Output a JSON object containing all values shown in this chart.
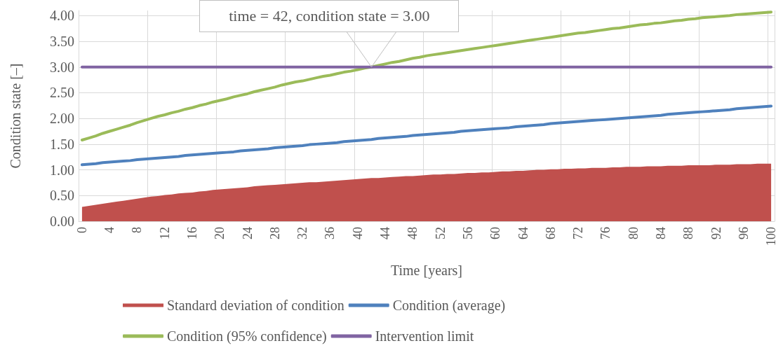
{
  "chart_data": {
    "type": "line",
    "xlabel": "Time [years]",
    "ylabel": "Condition state [–]",
    "categories": [
      "0",
      null,
      null,
      null,
      "4",
      null,
      null,
      null,
      "8",
      null,
      null,
      null,
      "12",
      null,
      null,
      null,
      "16",
      null,
      null,
      null,
      "20",
      null,
      null,
      null,
      "24",
      null,
      null,
      null,
      "28",
      null,
      null,
      null,
      "32",
      null,
      null,
      null,
      "36",
      null,
      null,
      null,
      "40",
      null,
      null,
      null,
      "44",
      null,
      null,
      null,
      "48",
      null,
      null,
      null,
      "52",
      null,
      null,
      null,
      "56",
      null,
      null,
      null,
      "60",
      null,
      null,
      null,
      "64",
      null,
      null,
      null,
      "68",
      null,
      null,
      null,
      "72",
      null,
      null,
      null,
      "76",
      null,
      null,
      null,
      "80",
      null,
      null,
      null,
      "84",
      null,
      null,
      null,
      "88",
      null,
      null,
      null,
      "92",
      null,
      null,
      null,
      "96",
      null,
      null,
      null,
      "100"
    ],
    "series": [
      {
        "name": "Standard deviation of condition",
        "type": "area",
        "color": "#c0504d",
        "values": [
          0.28,
          0.3,
          0.32,
          0.34,
          0.36,
          0.38,
          0.4,
          0.42,
          0.44,
          0.46,
          0.48,
          0.49,
          0.51,
          0.52,
          0.54,
          0.55,
          0.56,
          0.58,
          0.59,
          0.61,
          0.62,
          0.63,
          0.64,
          0.65,
          0.66,
          0.68,
          0.69,
          0.7,
          0.71,
          0.72,
          0.73,
          0.74,
          0.75,
          0.76,
          0.76,
          0.77,
          0.78,
          0.79,
          0.8,
          0.81,
          0.82,
          0.83,
          0.84,
          0.84,
          0.85,
          0.86,
          0.87,
          0.88,
          0.88,
          0.89,
          0.9,
          0.91,
          0.91,
          0.92,
          0.92,
          0.93,
          0.94,
          0.94,
          0.95,
          0.95,
          0.96,
          0.97,
          0.97,
          0.98,
          0.98,
          0.99,
          1.0,
          1.0,
          1.01,
          1.01,
          1.02,
          1.02,
          1.03,
          1.03,
          1.04,
          1.04,
          1.04,
          1.05,
          1.05,
          1.06,
          1.06,
          1.06,
          1.07,
          1.07,
          1.07,
          1.08,
          1.08,
          1.08,
          1.09,
          1.09,
          1.09,
          1.09,
          1.1,
          1.1,
          1.1,
          1.11,
          1.11,
          1.11,
          1.12,
          1.12,
          1.12
        ]
      },
      {
        "name": "Condition (average)",
        "color": "#4f81bd",
        "values": [
          1.1,
          1.11,
          1.12,
          1.14,
          1.15,
          1.16,
          1.17,
          1.18,
          1.2,
          1.21,
          1.22,
          1.23,
          1.24,
          1.25,
          1.26,
          1.28,
          1.29,
          1.3,
          1.31,
          1.32,
          1.33,
          1.34,
          1.35,
          1.37,
          1.38,
          1.39,
          1.4,
          1.41,
          1.43,
          1.44,
          1.45,
          1.46,
          1.47,
          1.49,
          1.5,
          1.51,
          1.52,
          1.53,
          1.55,
          1.56,
          1.57,
          1.58,
          1.59,
          1.61,
          1.62,
          1.63,
          1.64,
          1.65,
          1.67,
          1.68,
          1.69,
          1.7,
          1.71,
          1.72,
          1.73,
          1.75,
          1.76,
          1.77,
          1.78,
          1.79,
          1.8,
          1.81,
          1.82,
          1.84,
          1.85,
          1.86,
          1.87,
          1.88,
          1.9,
          1.91,
          1.92,
          1.93,
          1.94,
          1.95,
          1.96,
          1.97,
          1.98,
          1.99,
          2.0,
          2.01,
          2.02,
          2.03,
          2.04,
          2.05,
          2.06,
          2.08,
          2.09,
          2.1,
          2.11,
          2.12,
          2.13,
          2.14,
          2.15,
          2.16,
          2.17,
          2.19,
          2.2,
          2.21,
          2.22,
          2.23,
          2.24
        ]
      },
      {
        "name": "Condition (95% confidence)",
        "color": "#9bbb59",
        "values": [
          1.58,
          1.62,
          1.66,
          1.71,
          1.75,
          1.79,
          1.83,
          1.87,
          1.92,
          1.96,
          2.0,
          2.04,
          2.07,
          2.11,
          2.14,
          2.18,
          2.21,
          2.25,
          2.28,
          2.32,
          2.35,
          2.38,
          2.42,
          2.45,
          2.48,
          2.52,
          2.55,
          2.58,
          2.61,
          2.65,
          2.68,
          2.71,
          2.73,
          2.76,
          2.79,
          2.82,
          2.84,
          2.87,
          2.9,
          2.92,
          2.95,
          2.98,
          3.0,
          3.03,
          3.06,
          3.09,
          3.11,
          3.14,
          3.17,
          3.19,
          3.22,
          3.24,
          3.26,
          3.28,
          3.3,
          3.32,
          3.34,
          3.36,
          3.38,
          3.4,
          3.42,
          3.44,
          3.46,
          3.48,
          3.5,
          3.52,
          3.54,
          3.56,
          3.58,
          3.6,
          3.62,
          3.64,
          3.66,
          3.67,
          3.69,
          3.71,
          3.73,
          3.75,
          3.76,
          3.78,
          3.8,
          3.82,
          3.83,
          3.85,
          3.86,
          3.88,
          3.9,
          3.91,
          3.93,
          3.94,
          3.96,
          3.97,
          3.98,
          3.99,
          4.0,
          4.02,
          4.03,
          4.04,
          4.05,
          4.06,
          4.07
        ]
      },
      {
        "name": "Intervention limit",
        "color": "#8064a2",
        "values": [
          3,
          3,
          3,
          3,
          3,
          3,
          3,
          3,
          3,
          3,
          3,
          3,
          3,
          3,
          3,
          3,
          3,
          3,
          3,
          3,
          3,
          3,
          3,
          3,
          3,
          3,
          3,
          3,
          3,
          3,
          3,
          3,
          3,
          3,
          3,
          3,
          3,
          3,
          3,
          3,
          3,
          3,
          3,
          3,
          3,
          3,
          3,
          3,
          3,
          3,
          3,
          3,
          3,
          3,
          3,
          3,
          3,
          3,
          3,
          3,
          3,
          3,
          3,
          3,
          3,
          3,
          3,
          3,
          3,
          3,
          3,
          3,
          3,
          3,
          3,
          3,
          3,
          3,
          3,
          3,
          3,
          3,
          3,
          3,
          3,
          3,
          3,
          3,
          3,
          3,
          3,
          3,
          3,
          3,
          3,
          3,
          3,
          3,
          3,
          3,
          3
        ]
      }
    ],
    "ylim": [
      0,
      4.1
    ],
    "yticks": [
      {
        "value": 0,
        "label": "0.00"
      },
      {
        "value": 0.5,
        "label": "0.50"
      },
      {
        "value": 1,
        "label": "1.00"
      },
      {
        "value": 1.5,
        "label": "1.50"
      },
      {
        "value": 2,
        "label": "2.00"
      },
      {
        "value": 2.5,
        "label": "2.50"
      },
      {
        "value": 3,
        "label": "3.00"
      },
      {
        "value": 3.5,
        "label": "3.50"
      },
      {
        "value": 4,
        "label": "4.00"
      }
    ],
    "grid": true,
    "legend": "bottom",
    "marker": "none",
    "line_style": "solid",
    "annotations": [
      {
        "text": "time = 42, condition state = 3.00",
        "y": 3
      }
    ]
  }
}
